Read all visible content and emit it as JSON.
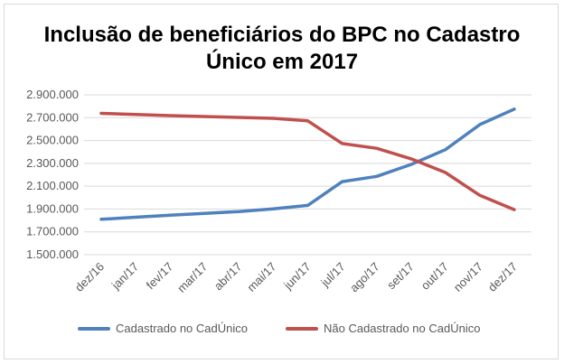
{
  "chart_data": {
    "type": "line",
    "title": [
      "Inclusão de beneficiários do BPC no Cadastro",
      "Único em 2017"
    ],
    "categories": [
      "dez/16",
      "jan/17",
      "fev/17",
      "mar/17",
      "abr/17",
      "mai/17",
      "jun/17",
      "jul/17",
      "ago/17",
      "set/17",
      "out/17",
      "nov/17",
      "dez/17"
    ],
    "ylim": [
      1500000,
      2900000
    ],
    "yticks": [
      1500000,
      1700000,
      1900000,
      2100000,
      2300000,
      2500000,
      2700000,
      2900000
    ],
    "ytick_labels": [
      "1.500.000",
      "1.700.000",
      "1.900.000",
      "2.100.000",
      "2.300.000",
      "2.500.000",
      "2.700.000",
      "2.900.000"
    ],
    "grid": true,
    "legend_position": "bottom",
    "series": [
      {
        "name": "Cadastrado no CadÚnico",
        "color": "#4f81bd",
        "values": [
          1810000,
          1828000,
          1846000,
          1862000,
          1878000,
          1902000,
          1932000,
          2140000,
          2186000,
          2290000,
          2420000,
          2640000,
          2775000
        ]
      },
      {
        "name": "Não Cadastrado no CadÚnico",
        "color": "#c0504d",
        "values": [
          2738000,
          2728000,
          2718000,
          2710000,
          2702000,
          2694000,
          2672000,
          2474000,
          2432000,
          2340000,
          2220000,
          2020000,
          1895000
        ]
      }
    ]
  }
}
